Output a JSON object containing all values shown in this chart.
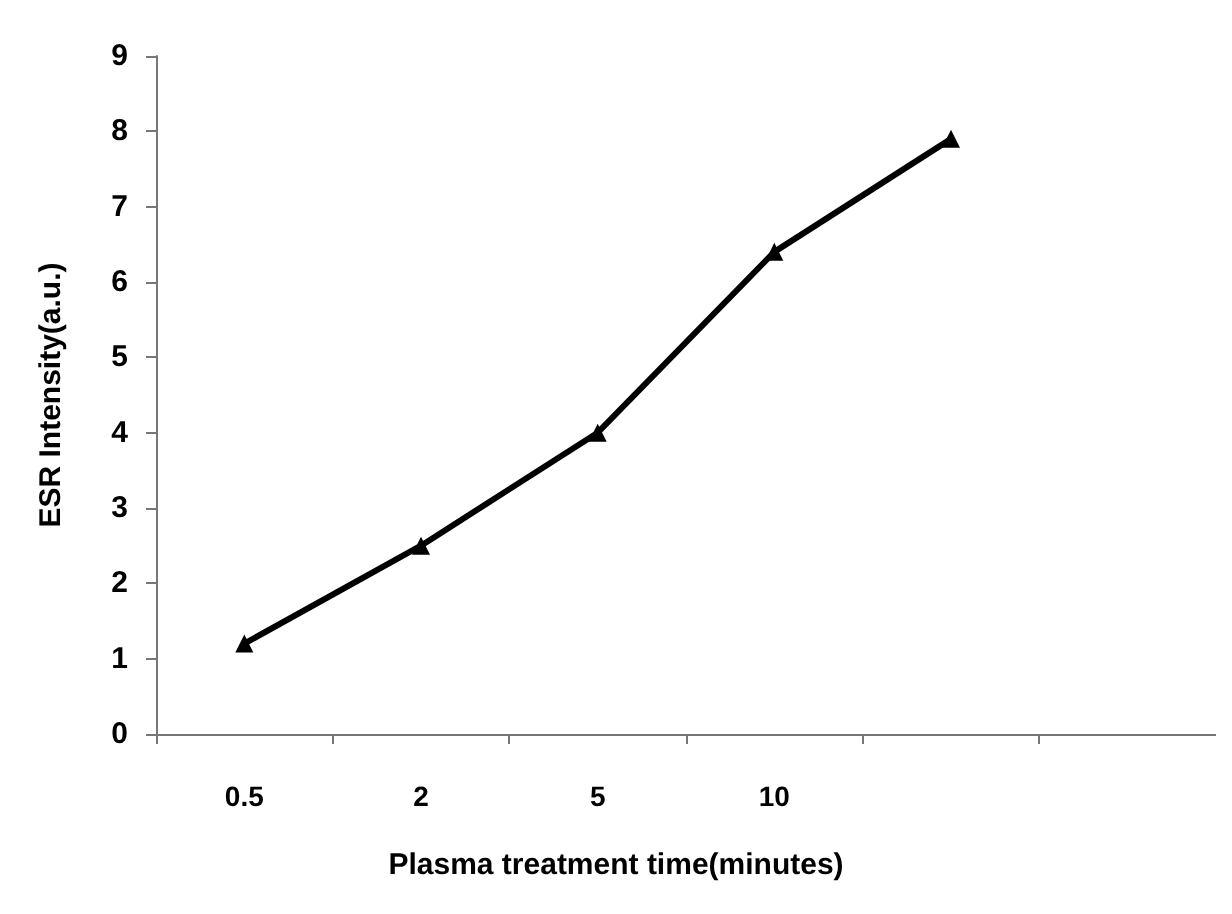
{
  "chart_data": {
    "type": "line",
    "xlabel": "Plasma treatment time(minutes)",
    "ylabel": "ESR Intensity(a.u.)",
    "categories": [
      "0.5",
      "2",
      "5",
      "10",
      null,
      null
    ],
    "series": [
      {
        "color": "#000000",
        "values": [
          1.2,
          2.5,
          4.0,
          6.4,
          7.9,
          null
        ]
      }
    ],
    "ylim": [
      0,
      9
    ],
    "yticks": [
      0,
      1,
      2,
      3,
      4,
      5,
      6,
      7,
      8,
      9
    ],
    "grid": false,
    "marker": "triangle",
    "line_style": "solid"
  }
}
